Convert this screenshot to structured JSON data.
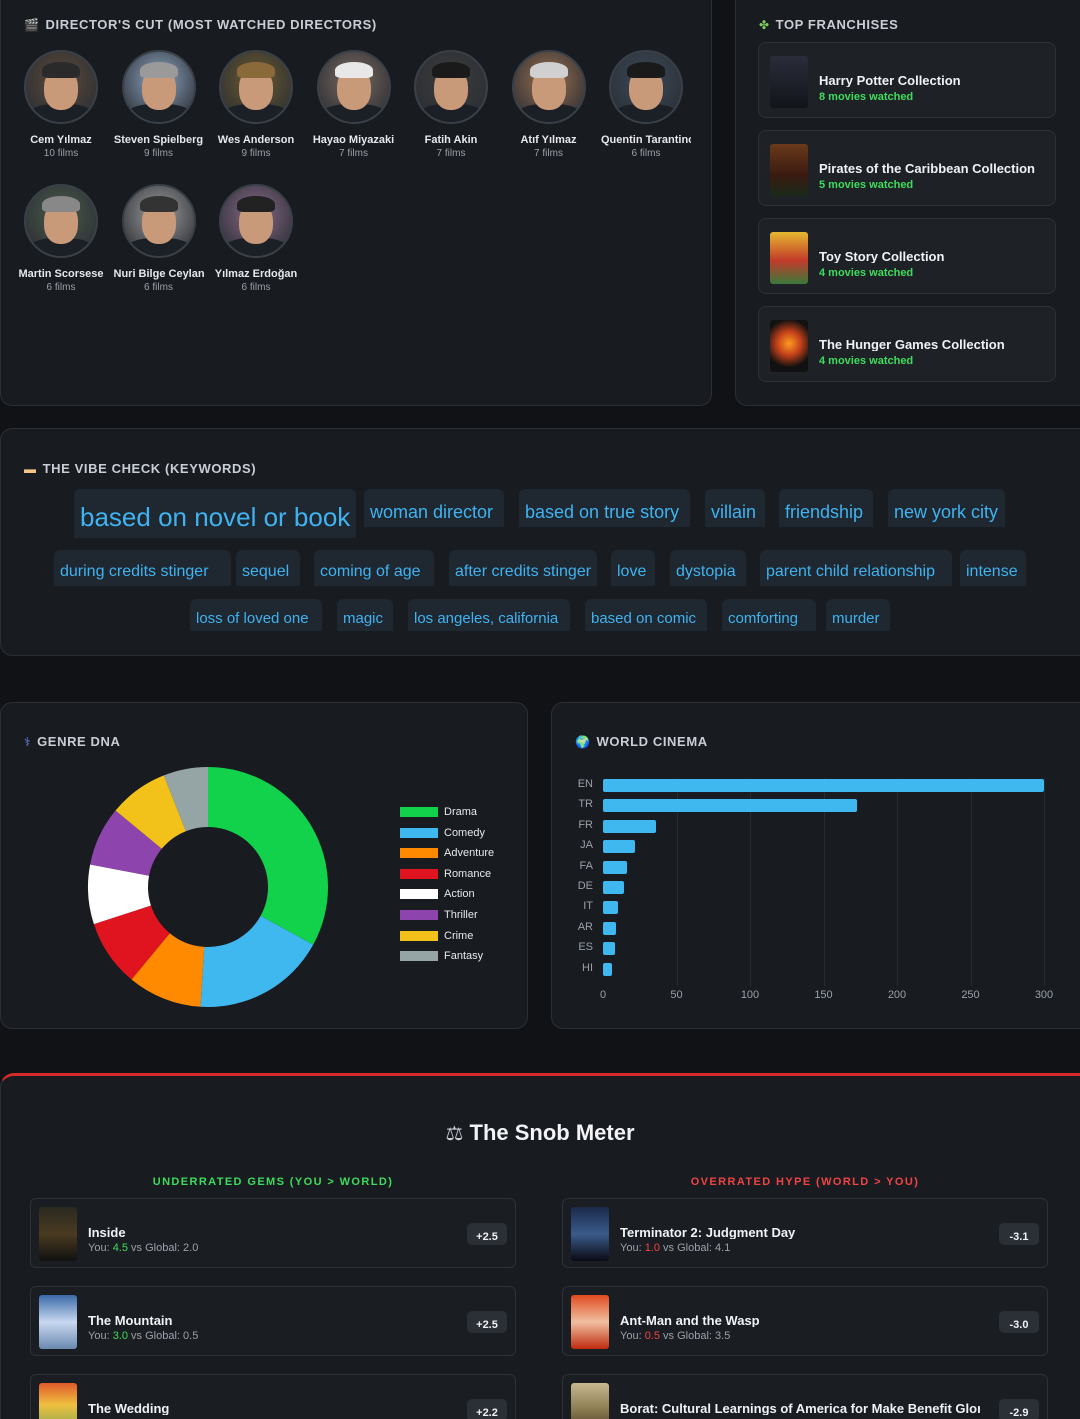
{
  "directors": {
    "title": "DIRECTOR'S CUT (MOST WATCHED DIRECTORS)",
    "icon": "clapper-icon",
    "items": [
      {
        "name": "Cem Yılmaz",
        "count": "10 films"
      },
      {
        "name": "Steven Spielberg",
        "count": "9 films"
      },
      {
        "name": "Wes Anderson",
        "count": "9 films"
      },
      {
        "name": "Hayao Miyazaki",
        "count": "7 films"
      },
      {
        "name": "Fatih Akin",
        "count": "7 films"
      },
      {
        "name": "Atıf Yılmaz",
        "count": "7 films"
      },
      {
        "name": "Quentin Tarantino",
        "count": "6 films"
      },
      {
        "name": "Martin Scorsese",
        "count": "6 films"
      },
      {
        "name": "Nuri Bilge Ceylan",
        "count": "6 films"
      },
      {
        "name": "Yılmaz Erdoğan",
        "count": "6 films"
      }
    ]
  },
  "franchises": {
    "title": "TOP FRANCHISES",
    "icon": "puzzle-icon",
    "items": [
      {
        "name": "Harry Potter Collection",
        "count": "8 movies watched"
      },
      {
        "name": "Pirates of the Caribbean Collection",
        "count": "5 movies watched"
      },
      {
        "name": "Toy Story Collection",
        "count": "4 movies watched"
      },
      {
        "name": "The Hunger Games Collection",
        "count": "4 movies watched"
      }
    ]
  },
  "keywords": {
    "title": "THE VIBE CHECK (KEYWORDS)",
    "icon": "tag-icon",
    "items": [
      "based on novel or book",
      "woman director",
      "based on true story",
      "villain",
      "friendship",
      "new york city",
      "during credits stinger",
      "sequel",
      "coming of age",
      "after credits stinger",
      "love",
      "dystopia",
      "parent child relationship",
      "intense",
      "loss of loved one",
      "magic",
      "los angeles, california",
      "based on comic",
      "comforting",
      "murder"
    ]
  },
  "genre": {
    "title": "GENRE DNA",
    "icon": "dna-icon",
    "chart_data": {
      "type": "pie",
      "categories": [
        "Drama",
        "Comedy",
        "Adventure",
        "Romance",
        "Action",
        "Thriller",
        "Crime",
        "Fantasy"
      ],
      "values": [
        33,
        18,
        10,
        9,
        8,
        8,
        8,
        6
      ],
      "colors": [
        "#12d14b",
        "#3fb8f0",
        "#ff8a00",
        "#e0141e",
        "#ffffff",
        "#8e44ad",
        "#f2c21b",
        "#95a5a6"
      ],
      "legend": "right"
    }
  },
  "world": {
    "title": "WORLD CINEMA",
    "icon": "globe-icon",
    "chart_data": {
      "type": "bar",
      "orientation": "horizontal",
      "categories": [
        "EN",
        "TR",
        "FR",
        "JA",
        "FA",
        "DE",
        "IT",
        "AR",
        "ES",
        "HI"
      ],
      "values": [
        300,
        173,
        36,
        22,
        16,
        14,
        10,
        9,
        8,
        6
      ],
      "xlim": [
        0,
        300
      ],
      "xticks": [
        "0",
        "50",
        "100",
        "150",
        "200",
        "250",
        "300"
      ],
      "grid": true,
      "color": "#3fb8f0"
    }
  },
  "snob": {
    "title": "The Snob Meter",
    "icon": "scales-icon",
    "underrated_title": "UNDERRATED GEMS (YOU > WORLD)",
    "overrated_title": "OVERRATED HYPE (WORLD > YOU)",
    "underrated_color": "#3ddc5c",
    "overrated_color": "#ef4444",
    "underrated": [
      {
        "title": "Inside",
        "you": "4.5",
        "global": "2.0",
        "delta": "+2.5"
      },
      {
        "title": "The Mountain",
        "you": "3.0",
        "global": "0.5",
        "delta": "+2.5"
      },
      {
        "title": "The Wedding",
        "you": "",
        "global": "",
        "delta": "+2.2"
      }
    ],
    "overrated": [
      {
        "title": "Terminator 2: Judgment Day",
        "you": "1.0",
        "global": "4.1",
        "delta": "-3.1"
      },
      {
        "title": "Ant-Man and the Wasp",
        "you": "0.5",
        "global": "3.5",
        "delta": "-3.0"
      },
      {
        "title": "Borat: Cultural Learnings of America for Make Benefit Glorious Nation of Kazakhstan",
        "you": "",
        "global": "",
        "delta": "-2.9"
      }
    ],
    "you_prefix": "You: ",
    "vs_global": " vs Global: "
  }
}
